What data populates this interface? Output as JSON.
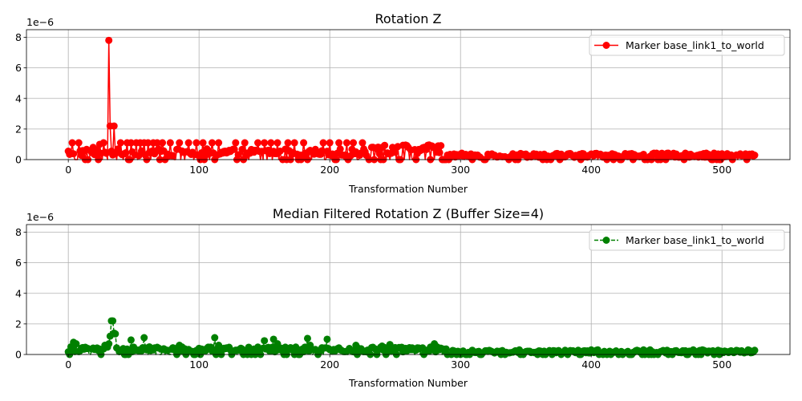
{
  "chart_data": [
    {
      "type": "line",
      "title": "Rotation Z",
      "xlabel": "Transformation Number",
      "ylabel": "",
      "y_offset_label": "1e−6",
      "xlim": [
        -32,
        552
      ],
      "ylim": [
        0,
        8.5
      ],
      "x_ticks": [
        0,
        100,
        200,
        300,
        400,
        500
      ],
      "x_tick_labels": [
        "0",
        "100",
        "200",
        "300",
        "400",
        "500"
      ],
      "y_ticks": [
        0,
        2,
        4,
        6,
        8
      ],
      "y_tick_labels": [
        "0",
        "2",
        "4",
        "6",
        "8"
      ],
      "grid": true,
      "legend": "top-right",
      "series": [
        {
          "name": "Marker base_link1_to_world",
          "color": "#ff0000",
          "linestyle": "solid",
          "marker": "circle",
          "x_range": [
            0,
            525
          ],
          "spikes": [
            [
              0,
              0.55
            ],
            [
              3,
              1.1
            ],
            [
              8,
              1.1
            ],
            [
              19,
              0.8
            ],
            [
              24,
              1.0
            ],
            [
              27,
              1.1
            ],
            [
              31,
              7.8
            ],
            [
              32,
              2.2
            ],
            [
              33,
              0.55
            ],
            [
              35,
              2.2
            ],
            [
              40,
              1.1
            ],
            [
              45,
              1.1
            ],
            [
              48,
              1.1
            ],
            [
              52,
              1.1
            ],
            [
              55,
              1.1
            ],
            [
              58,
              1.1
            ],
            [
              61,
              1.1
            ],
            [
              65,
              1.1
            ],
            [
              68,
              1.1
            ],
            [
              72,
              1.1
            ],
            [
              78,
              1.1
            ],
            [
              85,
              1.1
            ],
            [
              92,
              1.1
            ],
            [
              98,
              1.1
            ],
            [
              103,
              1.1
            ],
            [
              110,
              1.1
            ],
            [
              115,
              1.1
            ],
            [
              120,
              0.55
            ],
            [
              128,
              1.1
            ],
            [
              135,
              1.1
            ],
            [
              145,
              1.1
            ],
            [
              150,
              1.1
            ],
            [
              155,
              1.1
            ],
            [
              160,
              1.1
            ],
            [
              168,
              1.1
            ],
            [
              173,
              1.1
            ],
            [
              180,
              1.1
            ],
            [
              185,
              0.6
            ],
            [
              195,
              1.1
            ],
            [
              200,
              1.1
            ],
            [
              207,
              1.1
            ],
            [
              213,
              1.1
            ],
            [
              218,
              1.1
            ],
            [
              225,
              1.1
            ],
            [
              232,
              0.8
            ],
            [
              240,
              0.8
            ],
            [
              248,
              0.8
            ],
            [
              260,
              0.8
            ],
            [
              272,
              0.8
            ],
            [
              278,
              0.9
            ],
            [
              283,
              0.9
            ]
          ],
          "baseline_levels": [
            [
              0,
              230,
              0.5
            ],
            [
              230,
              290,
              0.7
            ],
            [
              290,
              526,
              0.3
            ]
          ]
        }
      ]
    },
    {
      "type": "line",
      "title": "Median Filtered Rotation Z (Buffer Size=4)",
      "xlabel": "Transformation Number",
      "ylabel": "",
      "y_offset_label": "1e−6",
      "xlim": [
        -32,
        552
      ],
      "ylim": [
        0,
        8.5
      ],
      "x_ticks": [
        0,
        100,
        200,
        300,
        400,
        500
      ],
      "x_tick_labels": [
        "0",
        "100",
        "200",
        "300",
        "400",
        "500"
      ],
      "y_ticks": [
        0,
        2,
        4,
        6,
        8
      ],
      "y_tick_labels": [
        "0",
        "2",
        "4",
        "6",
        "8"
      ],
      "grid": true,
      "legend": "top-right",
      "series": [
        {
          "name": "Marker base_link1_to_world",
          "color": "#008000",
          "linestyle": "dashed",
          "marker": "circle",
          "x_range": [
            0,
            525
          ],
          "spikes": [
            [
              2,
              0.5
            ],
            [
              4,
              0.8
            ],
            [
              6,
              0.7
            ],
            [
              28,
              0.6
            ],
            [
              31,
              0.7
            ],
            [
              32,
              1.2
            ],
            [
              33,
              2.2
            ],
            [
              34,
              2.2
            ],
            [
              35,
              1.4
            ],
            [
              36,
              1.35
            ],
            [
              48,
              0.95
            ],
            [
              58,
              1.1
            ],
            [
              62,
              0.5
            ],
            [
              85,
              0.6
            ],
            [
              112,
              1.1
            ],
            [
              115,
              0.6
            ],
            [
              150,
              0.9
            ],
            [
              157,
              1.0
            ],
            [
              160,
              0.7
            ],
            [
              183,
              1.05
            ],
            [
              185,
              0.6
            ],
            [
              198,
              1.0
            ],
            [
              220,
              0.6
            ],
            [
              232,
              0.45
            ],
            [
              240,
              0.55
            ],
            [
              246,
              0.65
            ],
            [
              250,
              0.45
            ],
            [
              270,
              0.4
            ],
            [
              280,
              0.7
            ],
            [
              282,
              0.5
            ],
            [
              345,
              0.3
            ],
            [
              400,
              0.3
            ],
            [
              405,
              0.3
            ],
            [
              440,
              0.3
            ],
            [
              445,
              0.3
            ],
            [
              478,
              0.3
            ],
            [
              485,
              0.3
            ],
            [
              520,
              0.3
            ]
          ],
          "baseline_levels": [
            [
              0,
              290,
              0.35
            ],
            [
              290,
              526,
              0.2
            ]
          ]
        }
      ]
    }
  ]
}
